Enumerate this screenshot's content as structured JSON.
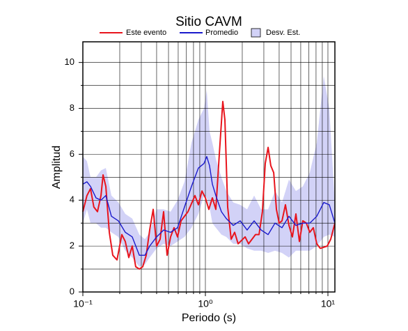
{
  "chart_data": {
    "type": "line",
    "title": "Sitio CAVM",
    "x_label": "Periodo (s)",
    "y_label": "Amplitud",
    "log_x": true,
    "grid": true,
    "xlim": [
      0.1,
      11.4
    ],
    "ylim": [
      0,
      10.9
    ],
    "xticks": [
      {
        "value": 0.1,
        "label": "10⁻¹"
      },
      {
        "value": 1,
        "label": "10⁰"
      },
      {
        "value": 10,
        "label": "10¹"
      }
    ],
    "xminor": [
      0.2,
      0.3,
      0.4,
      0.5,
      0.6,
      0.7,
      0.8,
      0.9,
      2,
      3,
      4,
      5,
      6,
      7,
      8,
      9
    ],
    "yticks": [
      0,
      2,
      4,
      6,
      8,
      10
    ],
    "yminor": [
      1,
      3,
      5,
      7,
      9
    ],
    "band": {
      "name": "Desv. Est.",
      "color": "#d2d2f7",
      "x": [
        0.1,
        0.108,
        0.1155,
        0.128,
        0.1406,
        0.154,
        0.171,
        0.195,
        0.222,
        0.253,
        0.289,
        0.321,
        0.351,
        0.4,
        0.456,
        0.52,
        0.593,
        0.675,
        0.77,
        0.877,
        0.974,
        1.026,
        1.081,
        1.14,
        1.217,
        1.351,
        1.481,
        1.687,
        1.923,
        2.19,
        2.5,
        2.85,
        3.25,
        3.7,
        4.22,
        4.81,
        5.48,
        6.24,
        7.11,
        8.11,
        9.25,
        10.26,
        11.4
      ],
      "lower": [
        3.0,
        3.6,
        3.0,
        3.0,
        2.8,
        2.8,
        2.6,
        2.4,
        1.8,
        1.5,
        1.1,
        1.2,
        1.5,
        1.9,
        2.1,
        2.0,
        2.2,
        2.4,
        2.8,
        3.4,
        4.2,
        4.1,
        3.7,
        3.0,
        2.8,
        2.5,
        2.4,
        2.1,
        2.1,
        1.9,
        1.8,
        1.8,
        1.7,
        1.8,
        1.7,
        1.5,
        1.8,
        1.8,
        1.8,
        2.0,
        2.4,
        2.5,
        2.4
      ],
      "upper": [
        5.9,
        5.7,
        5.0,
        5.0,
        5.3,
        5.4,
        4.2,
        3.9,
        3.4,
        3.2,
        2.5,
        2.3,
        2.6,
        3.6,
        3.6,
        3.5,
        4.0,
        4.8,
        6.5,
        7.5,
        8.0,
        8.8,
        7.0,
        6.5,
        5.8,
        5.0,
        4.4,
        3.9,
        3.8,
        3.6,
        4.2,
        3.6,
        3.6,
        4.4,
        3.9,
        4.9,
        4.4,
        4.6,
        5.2,
        6.5,
        9.4,
        8.0,
        3.8
      ]
    },
    "series": [
      {
        "name": "Este evento",
        "color": "#e8141c",
        "x": [
          0.1,
          0.108,
          0.1155,
          0.123,
          0.1316,
          0.1406,
          0.1462,
          0.154,
          0.1644,
          0.1755,
          0.19,
          0.208,
          0.222,
          0.237,
          0.253,
          0.27,
          0.289,
          0.308,
          0.329,
          0.351,
          0.375,
          0.4,
          0.427,
          0.456,
          0.487,
          0.52,
          0.555,
          0.593,
          0.633,
          0.721,
          0.822,
          0.877,
          0.937,
          1,
          1.067,
          1.14,
          1.217,
          1.299,
          1.387,
          1.443,
          1.52,
          1.623,
          1.733,
          1.85,
          2.11,
          2.25,
          2.565,
          2.74,
          2.92,
          3.08,
          3.25,
          3.42,
          3.61,
          3.8,
          4.0,
          4.22,
          4.5,
          4.81,
          5.13,
          5.48,
          5.85,
          6.24,
          6.67,
          7.11,
          7.6,
          8.11,
          8.66,
          9.87,
          10.54,
          11.4
        ],
        "values": [
          3.5,
          4.2,
          4.5,
          3.7,
          3.5,
          4.2,
          5.1,
          4.6,
          2.6,
          1.6,
          1.4,
          2.5,
          2.2,
          1.5,
          2.0,
          1.1,
          1.0,
          1.1,
          1.6,
          2.7,
          3.6,
          2.0,
          2.3,
          3.5,
          1.6,
          2.4,
          2.8,
          2.4,
          3.1,
          3.5,
          4.2,
          3.8,
          4.4,
          4.1,
          3.6,
          4.1,
          3.6,
          6.0,
          8.3,
          7.5,
          3.7,
          2.3,
          2.6,
          2.1,
          2.4,
          2.1,
          2.5,
          2.5,
          3.5,
          5.6,
          6.3,
          5.5,
          5.2,
          3.6,
          3.0,
          3.1,
          3.8,
          2.9,
          2.4,
          3.4,
          2.2,
          3.1,
          3.0,
          2.6,
          2.8,
          2.1,
          1.9,
          2.0,
          2.3,
          3.0
        ]
      },
      {
        "name": "Promedio",
        "color": "#1a1acc",
        "x": [
          0.1,
          0.108,
          0.1155,
          0.128,
          0.1406,
          0.154,
          0.171,
          0.195,
          0.222,
          0.253,
          0.289,
          0.321,
          0.351,
          0.4,
          0.456,
          0.52,
          0.593,
          0.675,
          0.77,
          0.877,
          0.974,
          1.026,
          1.081,
          1.14,
          1.217,
          1.351,
          1.481,
          1.687,
          1.923,
          2.19,
          2.5,
          2.85,
          3.25,
          3.7,
          4.22,
          4.81,
          5.48,
          6.24,
          7.11,
          8.11,
          9.25,
          10.26,
          11.4
        ],
        "values": [
          4.7,
          4.8,
          4.6,
          4.1,
          4.0,
          4.2,
          3.3,
          3.1,
          2.6,
          2.4,
          1.6,
          1.6,
          2.0,
          2.4,
          2.7,
          2.6,
          2.8,
          3.7,
          4.6,
          5.4,
          5.6,
          5.9,
          5.5,
          4.7,
          4.2,
          3.5,
          3.2,
          2.9,
          3.1,
          2.7,
          3.1,
          2.7,
          2.5,
          3.0,
          2.8,
          3.3,
          2.9,
          3.0,
          3.0,
          3.3,
          3.9,
          3.8,
          3.0
        ]
      }
    ]
  }
}
